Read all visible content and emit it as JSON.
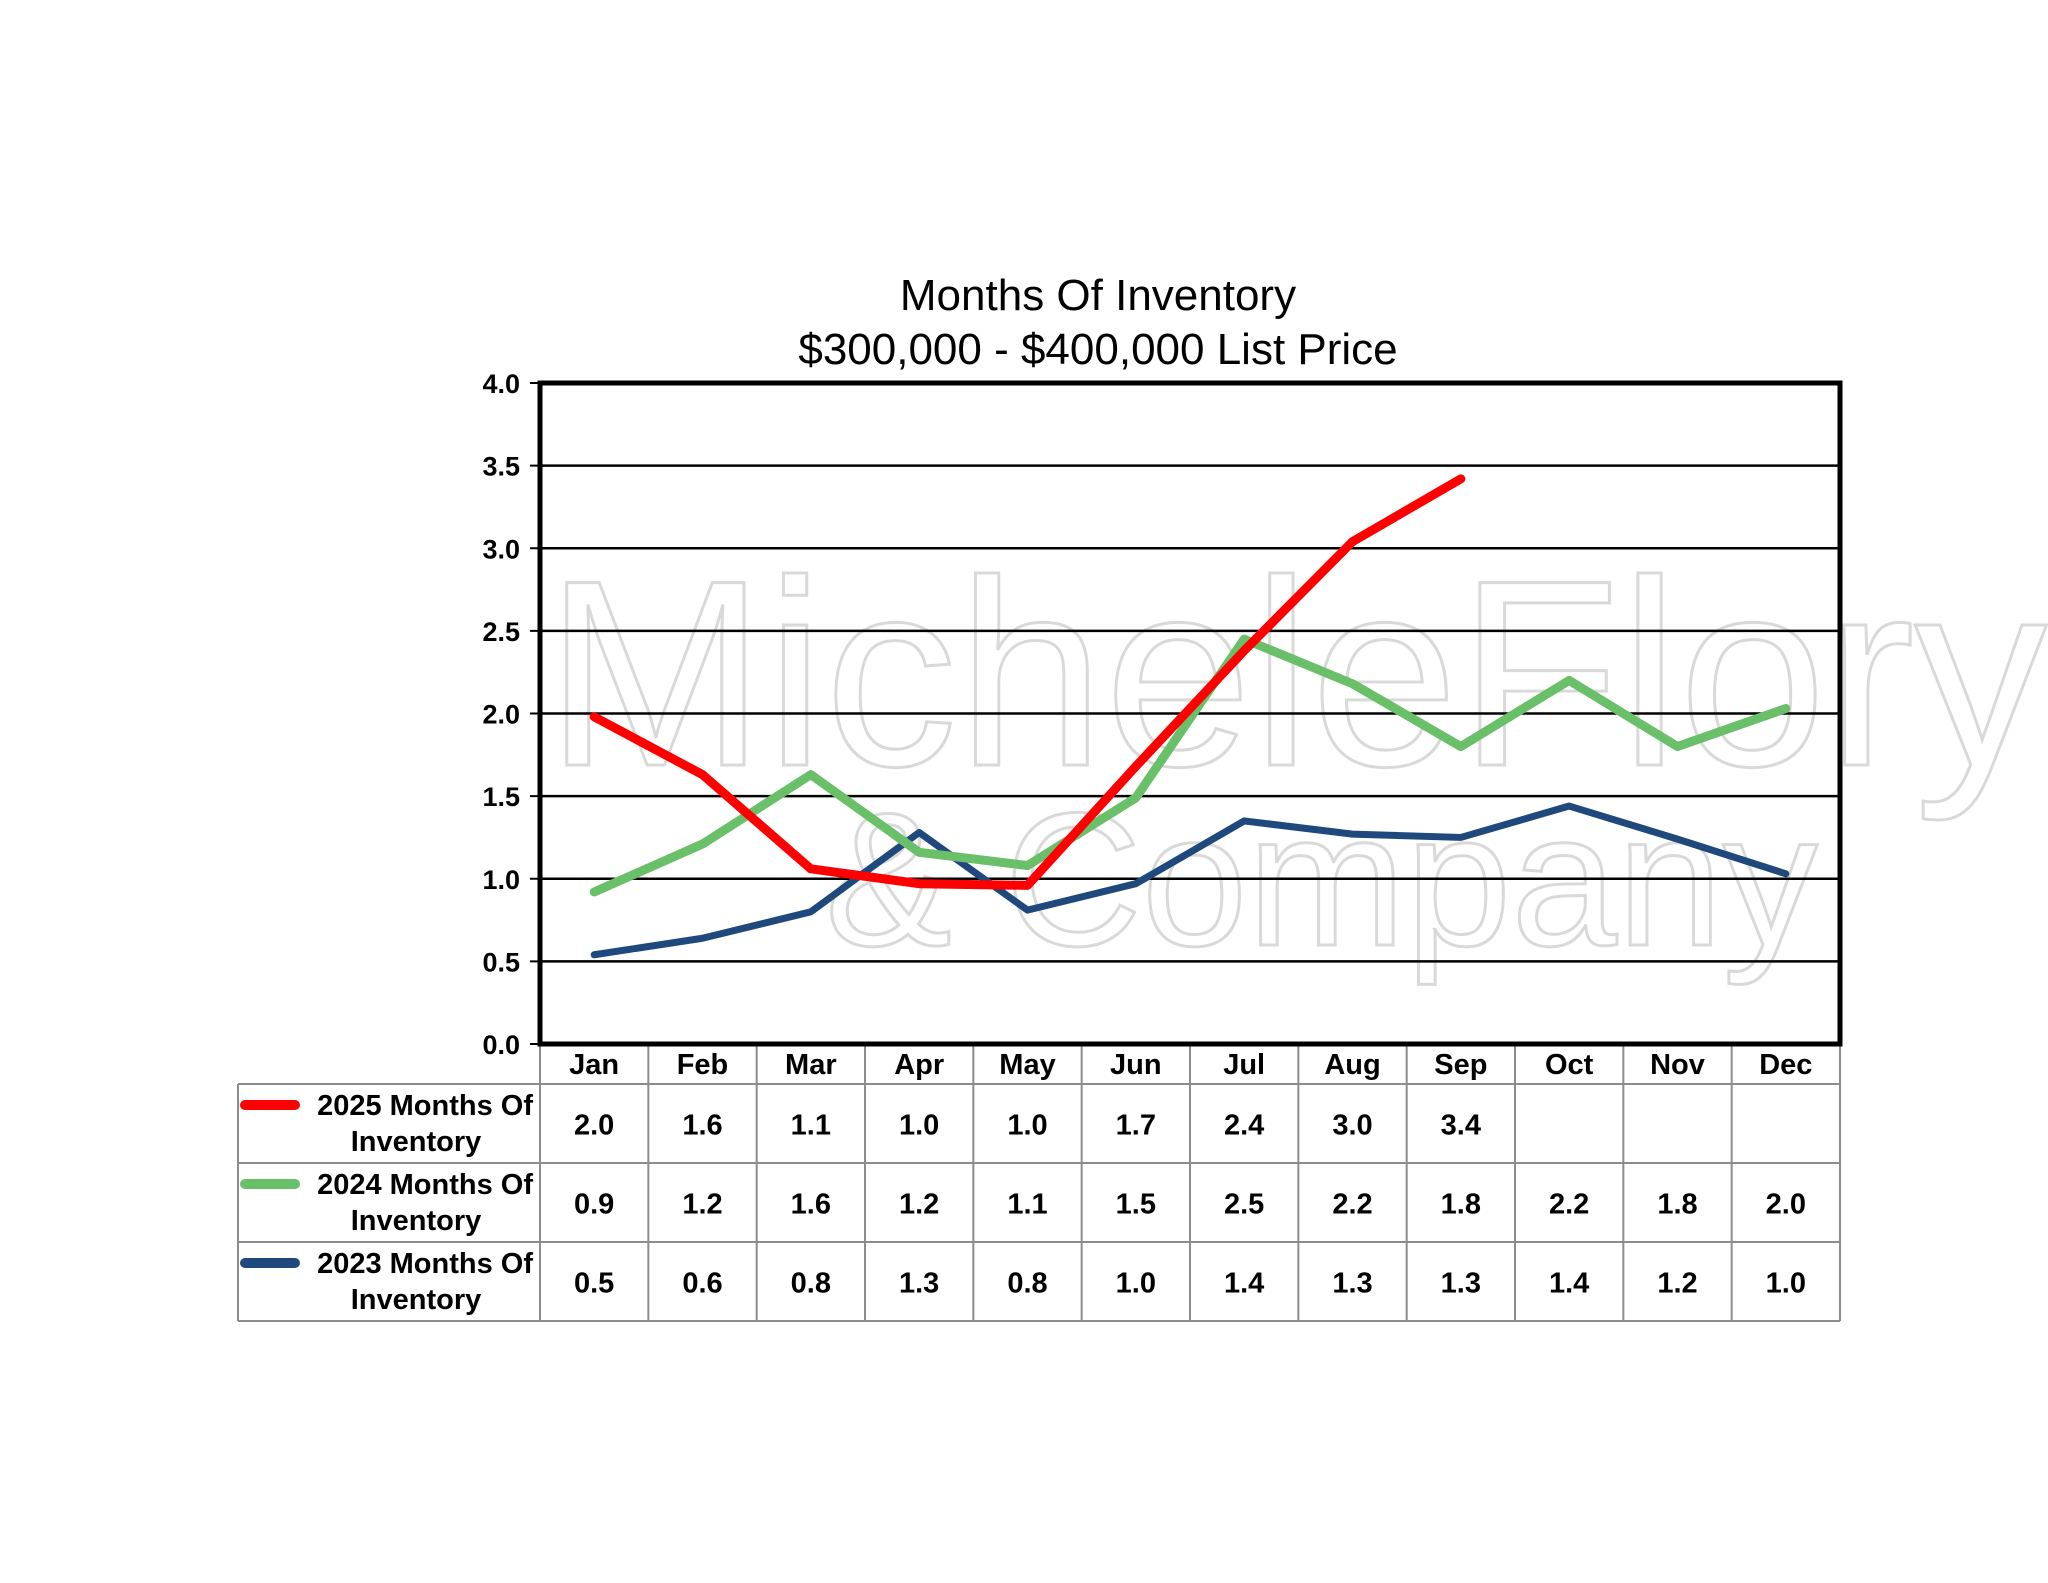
{
  "chart_data": {
    "type": "line",
    "title": "Months Of Inventory",
    "subtitle": "$300,000 - $400,000 List Price",
    "categories": [
      "Jan",
      "Feb",
      "Mar",
      "Apr",
      "May",
      "Jun",
      "Jul",
      "Aug",
      "Sep",
      "Oct",
      "Nov",
      "Dec"
    ],
    "ylim": [
      0,
      4
    ],
    "yticks": [
      "0.0",
      "0.5",
      "1.0",
      "1.5",
      "2.0",
      "2.5",
      "3.0",
      "3.5",
      "4.0"
    ],
    "grid": true,
    "legend_placement": "data-table-left",
    "watermark": {
      "line1": "MicheleFlory",
      "line2": "& Company"
    },
    "series": [
      {
        "name": "2025 Months Of Inventory",
        "name_lines": [
          "2025 Months Of",
          "Inventory"
        ],
        "color": "#ff0000",
        "values": [
          1.98,
          1.63,
          1.06,
          0.97,
          0.96,
          1.68,
          2.38,
          3.04,
          3.42,
          null,
          null,
          null
        ],
        "labels": [
          "2.0",
          "1.6",
          "1.1",
          "1.0",
          "1.0",
          "1.7",
          "2.4",
          "3.0",
          "3.4",
          "",
          "",
          ""
        ]
      },
      {
        "name": "2024 Months Of Inventory",
        "name_lines": [
          "2024 Months Of",
          "Inventory"
        ],
        "color": "#6abf69",
        "values": [
          0.92,
          1.21,
          1.63,
          1.16,
          1.08,
          1.49,
          2.45,
          2.18,
          1.8,
          2.2,
          1.8,
          2.03
        ],
        "labels": [
          "0.9",
          "1.2",
          "1.6",
          "1.2",
          "1.1",
          "1.5",
          "2.5",
          "2.2",
          "1.8",
          "2.2",
          "1.8",
          "2.0"
        ]
      },
      {
        "name": "2023 Months Of Inventory",
        "name_lines": [
          "2023 Months Of",
          "Inventory"
        ],
        "color": "#1f497d",
        "values": [
          0.54,
          0.64,
          0.8,
          1.28,
          0.81,
          0.97,
          1.35,
          1.27,
          1.25,
          1.44,
          1.24,
          1.03
        ],
        "labels": [
          "0.5",
          "0.6",
          "0.8",
          "1.3",
          "0.8",
          "1.0",
          "1.4",
          "1.3",
          "1.3",
          "1.4",
          "1.2",
          "1.0"
        ]
      }
    ]
  }
}
